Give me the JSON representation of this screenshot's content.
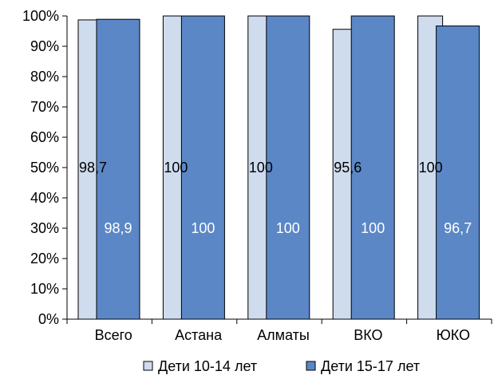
{
  "chart_data": {
    "type": "bar",
    "categories": [
      "Всего",
      "Астана",
      "Алматы",
      "ВКО",
      "ЮКО"
    ],
    "series": [
      {
        "name": "Дети 10-14 лет",
        "values": [
          98.7,
          100,
          100,
          95.6,
          100
        ],
        "labels": [
          "98,7",
          "100",
          "100",
          "95,6",
          "100"
        ],
        "color": "#cfdcee",
        "label_color": "#000000"
      },
      {
        "name": "Дети 15-17 лет",
        "values": [
          98.9,
          100,
          100,
          100,
          96.7
        ],
        "labels": [
          "98,9",
          "100",
          "100",
          "100",
          "96,7"
        ],
        "color": "#5b87c6",
        "label_color": "#ffffff"
      }
    ],
    "y_ticks": [
      "0%",
      "10%",
      "20%",
      "30%",
      "40%",
      "50%",
      "60%",
      "70%",
      "80%",
      "90%",
      "100%"
    ],
    "ylim": [
      0,
      100
    ],
    "grid": false,
    "legend_position": "bottom",
    "label_positions": {
      "Дети 10-14 лет": 50,
      "Дети 15-17 лет": 30
    },
    "bar_edge_color": "#000000"
  }
}
